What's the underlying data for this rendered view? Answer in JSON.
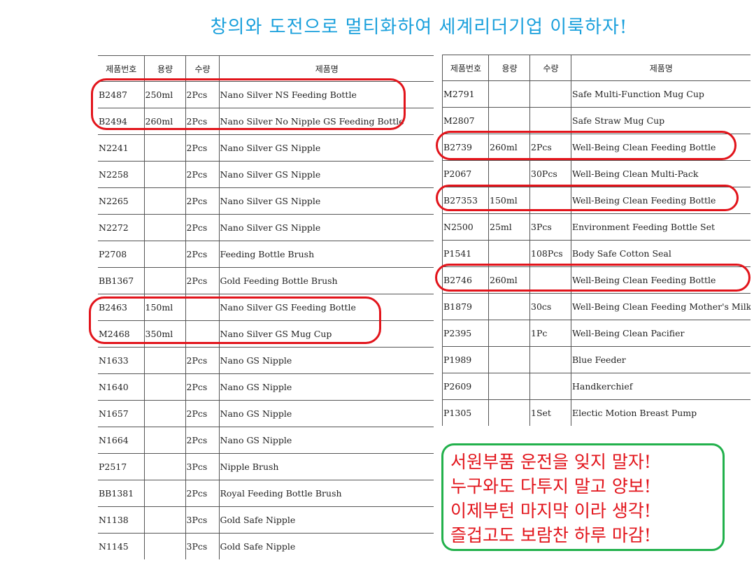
{
  "title": "창의와 도전으로 멀티화하여 세계리더기업 이룩하자!",
  "headers": [
    "제품번호",
    "용량",
    "수량",
    "제품명"
  ],
  "left_rows": [
    [
      "B2487",
      "250ml",
      "2Pcs",
      "Nano Silver NS Feeding Bottle"
    ],
    [
      "B2494",
      "260ml",
      "2Pcs",
      "Nano Silver No Nipple GS Feeding Bottle"
    ],
    [
      "N2241",
      "",
      "2Pcs",
      "Nano Silver GS Nipple"
    ],
    [
      "N2258",
      "",
      "2Pcs",
      "Nano Silver GS Nipple"
    ],
    [
      "N2265",
      "",
      "2Pcs",
      "Nano Silver GS Nipple"
    ],
    [
      "N2272",
      "",
      "2Pcs",
      "Nano Silver GS Nipple"
    ],
    [
      "P2708",
      "",
      "2Pcs",
      "Feeding Bottle Brush"
    ],
    [
      "BB1367",
      "",
      "2Pcs",
      "Gold Feeding Bottle Brush"
    ],
    [
      "B2463",
      "150ml",
      "",
      "Nano Silver GS Feeding Bottle"
    ],
    [
      "M2468",
      "350ml",
      "",
      "Nano Silver GS Mug Cup"
    ],
    [
      "N1633",
      "",
      "2Pcs",
      "Nano GS Nipple"
    ],
    [
      "N1640",
      "",
      "2Pcs",
      "Nano GS Nipple"
    ],
    [
      "N1657",
      "",
      "2Pcs",
      "Nano GS Nipple"
    ],
    [
      "N1664",
      "",
      "2Pcs",
      "Nano GS Nipple"
    ],
    [
      "P2517",
      "",
      "3Pcs",
      "Nipple Brush"
    ],
    [
      "BB1381",
      "",
      "2Pcs",
      "Royal Feeding Bottle Brush"
    ],
    [
      "N1138",
      "",
      "3Pcs",
      "Gold Safe Nipple"
    ],
    [
      "N1145",
      "",
      "3Pcs",
      "Gold Safe Nipple"
    ]
  ],
  "right_rows": [
    [
      "M2791",
      "",
      "",
      "Safe Multi-Function Mug Cup"
    ],
    [
      "M2807",
      "",
      "",
      "Safe Straw Mug Cup"
    ],
    [
      "B2739",
      "260ml",
      "2Pcs",
      "Well-Being Clean Feeding Bottle"
    ],
    [
      "P2067",
      "",
      "30Pcs",
      "Well-Being Clean Multi-Pack"
    ],
    [
      "B27353",
      "150ml",
      "",
      "Well-Being Clean Feeding Bottle"
    ],
    [
      "N2500",
      "25ml",
      "3Pcs",
      "Environment Feeding Bottle Set"
    ],
    [
      "P1541",
      "",
      "108Pcs",
      "Body Safe Cotton Seal"
    ],
    [
      "B2746",
      "260ml",
      "",
      "Well-Being Clean Feeding Bottle"
    ],
    [
      "B1879",
      "",
      "30cs",
      "Well-Being Clean Feeding Mother's Milk"
    ],
    [
      "P2395",
      "",
      "1Pc",
      "Well-Being Clean Pacifier"
    ],
    [
      "P1989",
      "",
      "",
      "Blue Feeder"
    ],
    [
      "P2609",
      "",
      "",
      "Handkerchief"
    ],
    [
      "P1305",
      "",
      "1Set",
      "Electic Motion Breast Pump"
    ]
  ],
  "slogan": [
    "서원부품 운전을 잊지 말자!",
    "누구와도 다투지 말고 양보!",
    "이제부턴 마지막 이라 생각!",
    "즐겁고도 보람찬 하루 마감!"
  ],
  "colors": {
    "title": "#1aa0dc",
    "highlight": "#e2141b",
    "slogan_border": "#22b14c",
    "slogan_text": "#e2141b"
  }
}
